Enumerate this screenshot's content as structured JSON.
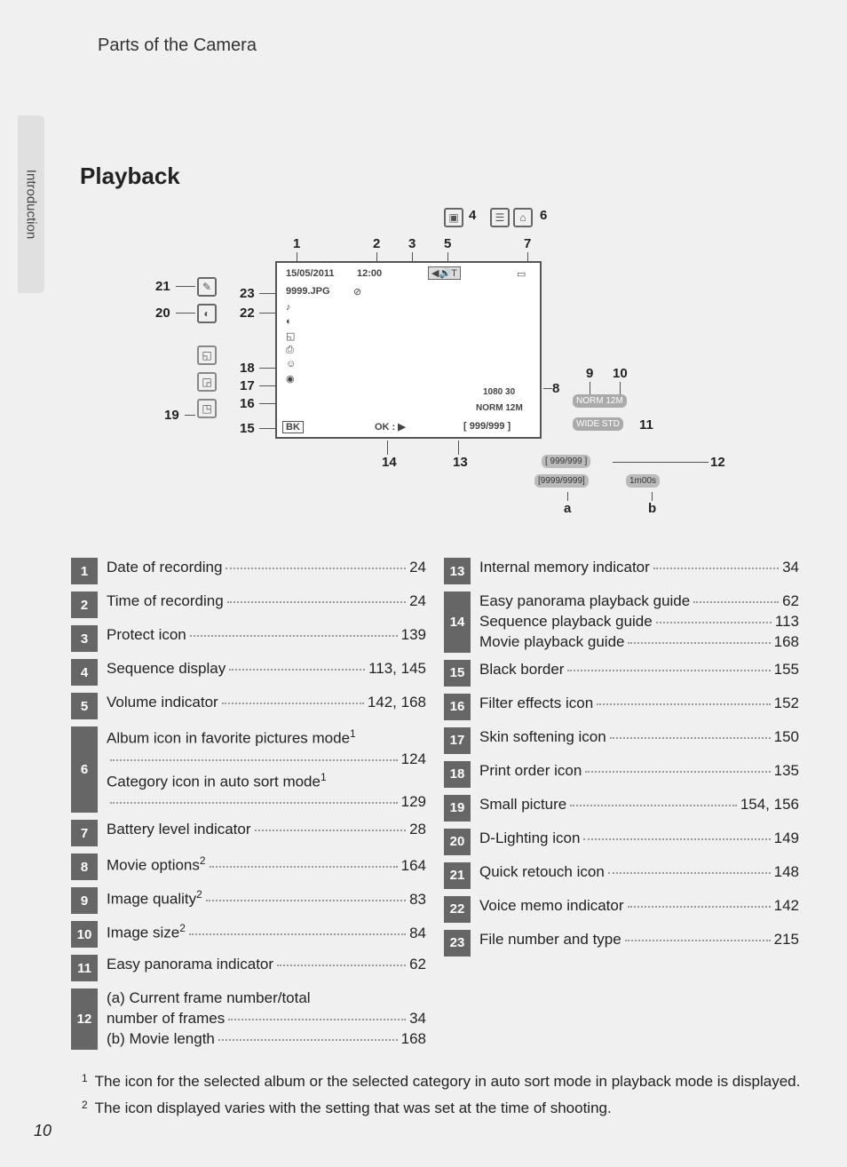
{
  "breadcrumb": "Parts of the Camera",
  "side_tab": "Introduction",
  "heading": "Playback",
  "page_number": "10",
  "screen": {
    "date": "15/05/2011",
    "time": "12:00",
    "file": "9999.JPG",
    "mid1": "1080 30",
    "mid2": "NORM 12M",
    "bk": "BK",
    "ok": "OK : ▶",
    "counter": "[ 999/999 ]",
    "pill_norm": "NORM 12M",
    "pill_wide": "WIDE  STD",
    "pill_counter1": "[ 999/999 ]",
    "pill_counter2": "[9999/9999]",
    "pill_time": "1m00s"
  },
  "callouts": {
    "1": "1",
    "2": "2",
    "3": "3",
    "4": "4",
    "5": "5",
    "6": "6",
    "7": "7",
    "8": "8",
    "9": "9",
    "10": "10",
    "11": "11",
    "12": "12",
    "13": "13",
    "14": "14",
    "15": "15",
    "16": "16",
    "17": "17",
    "18": "18",
    "19": "19",
    "20": "20",
    "21": "21",
    "22": "22",
    "23": "23",
    "a": "a",
    "b": "b"
  },
  "legend_left": [
    {
      "n": "1",
      "lines": [
        {
          "label": "Date of recording",
          "page": "24"
        }
      ]
    },
    {
      "n": "2",
      "lines": [
        {
          "label": "Time of recording",
          "page": "24"
        }
      ]
    },
    {
      "n": "3",
      "lines": [
        {
          "label": "Protect icon",
          "page": "139"
        }
      ]
    },
    {
      "n": "4",
      "lines": [
        {
          "label": "Sequence display",
          "page": "113, 145"
        }
      ]
    },
    {
      "n": "5",
      "lines": [
        {
          "label": "Volume indicator",
          "page": "142, 168"
        }
      ]
    },
    {
      "n": "6",
      "lines": [
        {
          "label": "Album icon in favorite pictures mode",
          "sup": "1",
          "page": "124",
          "wrap": true
        },
        {
          "label": "Category icon in auto sort mode",
          "sup": "1",
          "page": "129",
          "wrap": true
        }
      ]
    },
    {
      "n": "7",
      "lines": [
        {
          "label": "Battery level indicator",
          "page": "28"
        }
      ]
    },
    {
      "n": "8",
      "lines": [
        {
          "label": "Movie options",
          "sup": "2",
          "page": "164"
        }
      ]
    },
    {
      "n": "9",
      "lines": [
        {
          "label": "Image quality",
          "sup": "2",
          "page": "83"
        }
      ]
    },
    {
      "n": "10",
      "lines": [
        {
          "label": "Image size",
          "sup": "2",
          "page": "84"
        }
      ]
    },
    {
      "n": "11",
      "lines": [
        {
          "label": "Easy panorama indicator",
          "page": "62"
        }
      ]
    },
    {
      "n": "12",
      "lines": [
        {
          "label": "(a) Current frame number/total",
          "nopage": true
        },
        {
          "label": "        number of frames",
          "page": "34"
        },
        {
          "label": "(b) Movie length",
          "page": "168"
        }
      ]
    }
  ],
  "legend_right": [
    {
      "n": "13",
      "lines": [
        {
          "label": "Internal memory indicator",
          "page": "34"
        }
      ]
    },
    {
      "n": "14",
      "lines": [
        {
          "label": "Easy panorama playback guide",
          "page": "62"
        },
        {
          "label": "Sequence playback guide",
          "page": "113"
        },
        {
          "label": "Movie playback guide",
          "page": "168"
        }
      ]
    },
    {
      "n": "15",
      "lines": [
        {
          "label": "Black border",
          "page": "155"
        }
      ]
    },
    {
      "n": "16",
      "lines": [
        {
          "label": "Filter effects icon",
          "page": "152"
        }
      ]
    },
    {
      "n": "17",
      "lines": [
        {
          "label": "Skin softening icon",
          "page": "150"
        }
      ]
    },
    {
      "n": "18",
      "lines": [
        {
          "label": "Print order icon",
          "page": "135"
        }
      ]
    },
    {
      "n": "19",
      "lines": [
        {
          "label": "Small picture",
          "page": "154, 156"
        }
      ]
    },
    {
      "n": "20",
      "lines": [
        {
          "label": "D-Lighting icon",
          "page": "149"
        }
      ]
    },
    {
      "n": "21",
      "lines": [
        {
          "label": "Quick retouch icon",
          "page": "148"
        }
      ]
    },
    {
      "n": "22",
      "lines": [
        {
          "label": "Voice memo indicator",
          "page": "142"
        }
      ]
    },
    {
      "n": "23",
      "lines": [
        {
          "label": "File number and type",
          "page": "215"
        }
      ]
    }
  ],
  "footnotes": [
    {
      "n": "1",
      "text": "The icon for the selected album or the selected category in auto sort mode in playback mode is displayed."
    },
    {
      "n": "2",
      "text": "The icon displayed varies with the setting that was set at the time of shooting."
    }
  ]
}
